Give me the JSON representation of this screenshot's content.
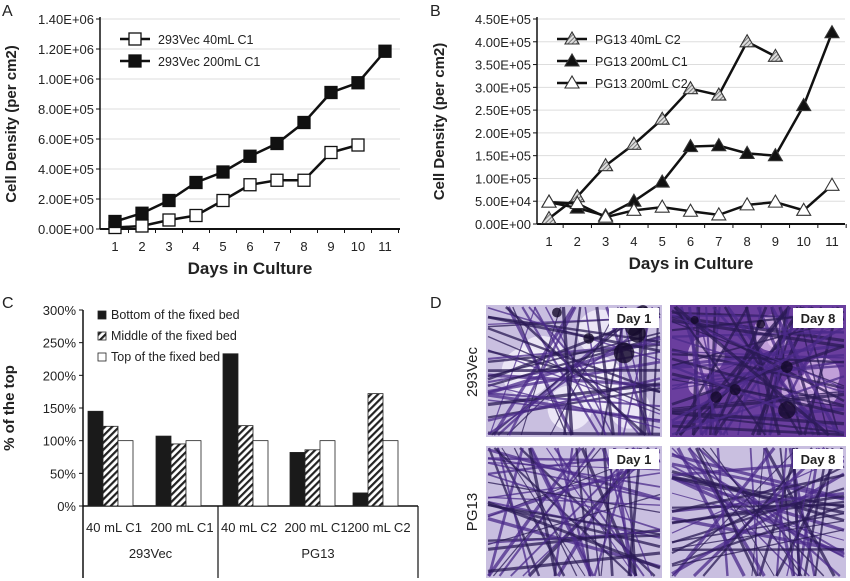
{
  "chart_data": [
    {
      "panel": "A",
      "type": "line",
      "xlabel": "Days in Culture",
      "ylabel": "Cell Density (per cm2)",
      "x": [
        1,
        2,
        3,
        4,
        5,
        6,
        7,
        8,
        9,
        10,
        11
      ],
      "ylim": [
        0,
        1400000
      ],
      "yticks": [
        "0.00E+00",
        "2.00E+05",
        "4.00E+05",
        "6.00E+05",
        "8.00E+05",
        "1.00E+06",
        "1.20E+06",
        "1.40E+06"
      ],
      "grid": true,
      "legend": "top-left",
      "series": [
        {
          "name": "293Vec 40mL C1",
          "marker": "open-square",
          "values": [
            10000,
            20000,
            60000,
            90000,
            190000,
            295000,
            325000,
            325000,
            510000,
            560000,
            null
          ]
        },
        {
          "name": "293Vec 200mL C1",
          "marker": "filled-square",
          "values": [
            50000,
            105000,
            190000,
            310000,
            380000,
            485000,
            570000,
            710000,
            910000,
            975000,
            1185000
          ]
        }
      ]
    },
    {
      "panel": "B",
      "type": "line",
      "xlabel": "Days in Culture",
      "ylabel": "Cell Density (per cm2)",
      "x": [
        1,
        2,
        3,
        4,
        5,
        6,
        7,
        8,
        9,
        10,
        11
      ],
      "ylim": [
        0,
        450000
      ],
      "yticks": [
        "0.00E+00",
        "5.00E+04",
        "1.00E+05",
        "1.50E+05",
        "2.00E+05",
        "2.50E+05",
        "3.00E+05",
        "3.50E+05",
        "4.00E+05",
        "4.50E+05"
      ],
      "grid": true,
      "legend": "top-left",
      "series": [
        {
          "name": "PG13 40mL C2",
          "marker": "hatched-triangle",
          "values": [
            12000,
            60000,
            128000,
            175000,
            230000,
            297000,
            283000,
            400000,
            368000,
            null,
            null
          ]
        },
        {
          "name": "PG13 200mL C1",
          "marker": "filled-triangle",
          "values": [
            48000,
            35000,
            18000,
            50000,
            92000,
            170000,
            172000,
            155000,
            150000,
            260000,
            420000
          ]
        },
        {
          "name": "PG13 200mL C2",
          "marker": "open-triangle",
          "values": [
            48000,
            45000,
            15000,
            30000,
            37000,
            28000,
            20000,
            42000,
            48000,
            30000,
            85000
          ]
        }
      ]
    },
    {
      "panel": "C",
      "type": "bar",
      "ylabel": "% of the top",
      "ylim": [
        0,
        300
      ],
      "yticks": [
        "0%",
        "50%",
        "100%",
        "150%",
        "200%",
        "250%",
        "300%"
      ],
      "categories": [
        "40 mL C1",
        "200 mL C1",
        "40 mL C2",
        "200 mL C1",
        "200 mL C2"
      ],
      "groups": [
        {
          "label": "293Vec",
          "span": 2
        },
        {
          "label": "PG13",
          "span": 3
        }
      ],
      "legend": "top-left",
      "series": [
        {
          "name": "Bottom of the fixed bed",
          "fill": "#1a1a1a",
          "values": [
            145,
            107,
            233,
            82,
            20
          ]
        },
        {
          "name": "Middle of the fixed bed",
          "fill": "hatched",
          "values": [
            122,
            95,
            123,
            86,
            172
          ]
        },
        {
          "name": "Top of the fixed bed",
          "fill": "#ffffff",
          "values": [
            100,
            100,
            100,
            100,
            100
          ]
        }
      ]
    }
  ],
  "panel_d": {
    "label": "D",
    "rows": [
      {
        "label": "293Vec",
        "images": [
          {
            "day": "Day 1"
          },
          {
            "day": "Day 8"
          }
        ]
      },
      {
        "label": "PG13",
        "images": [
          {
            "day": "Day 1"
          },
          {
            "day": "Day 8"
          }
        ]
      }
    ],
    "stain_color": "#4b2a8a"
  },
  "panel_labels": [
    "A",
    "B",
    "C",
    "D"
  ]
}
